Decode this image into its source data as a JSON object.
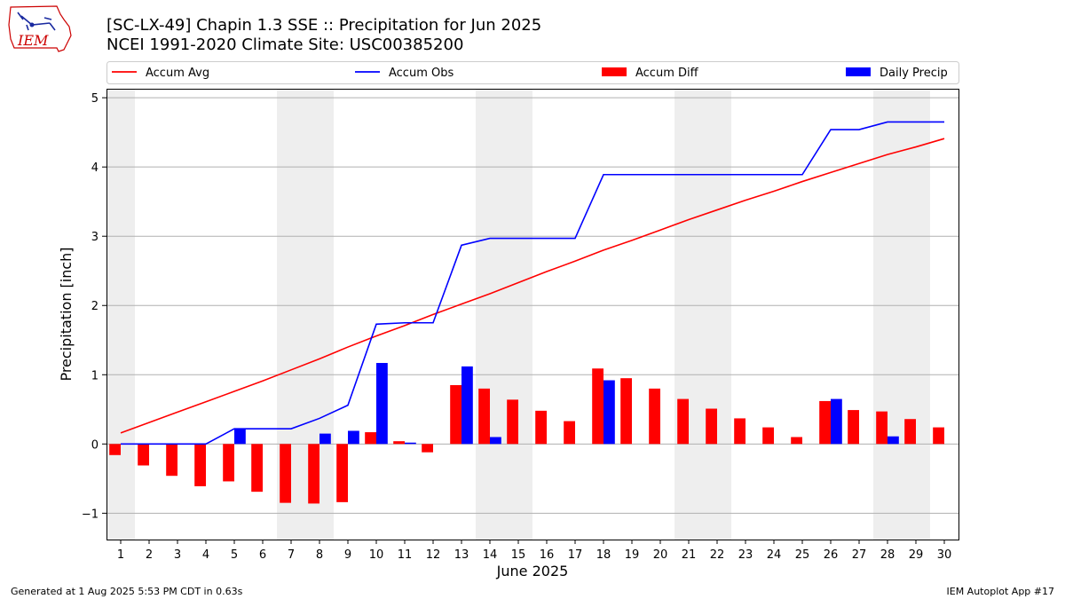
{
  "header": {
    "title_line1": "[SC-LX-49] Chapin 1.3 SSE :: Precipitation for Jun 2025",
    "title_line2": "NCEI 1991-2020 Climate Site: USC00385200"
  },
  "logo": {
    "text": "IEM"
  },
  "footer": {
    "left": "Generated at 1 Aug 2025 5:53 PM CDT in 0.63s",
    "right": "IEM Autoplot App #17"
  },
  "colors": {
    "avg": "#ff0000",
    "obs": "#0000ff",
    "diff": "#ff0000",
    "daily": "#0000ff",
    "weekend": "#eeeeee",
    "grid": "#b0b0b0"
  },
  "chart_data": {
    "type": "bar",
    "xlabel": "June 2025",
    "ylabel": "Precipitation [inch]",
    "ylim": [
      -1.38,
      5.13
    ],
    "yticks": [
      -1,
      0,
      1,
      2,
      3,
      4,
      5
    ],
    "ytick_labels": [
      "−1",
      "0",
      "1",
      "2",
      "3",
      "4",
      "5"
    ],
    "grid": "horizontal",
    "legend_position": "top",
    "days": [
      1,
      2,
      3,
      4,
      5,
      6,
      7,
      8,
      9,
      10,
      11,
      12,
      13,
      14,
      15,
      16,
      17,
      18,
      19,
      20,
      21,
      22,
      23,
      24,
      25,
      26,
      27,
      28,
      29,
      30
    ],
    "weekend_bands": [
      [
        1,
        1
      ],
      [
        7,
        8
      ],
      [
        14,
        15
      ],
      [
        21,
        22
      ],
      [
        28,
        29
      ]
    ],
    "series": [
      {
        "name": "Accum Avg",
        "type": "line",
        "values": [
          0.16,
          0.31,
          0.46,
          0.61,
          0.76,
          0.91,
          1.07,
          1.23,
          1.4,
          1.56,
          1.71,
          1.87,
          2.02,
          2.17,
          2.33,
          2.49,
          2.64,
          2.8,
          2.94,
          3.09,
          3.24,
          3.38,
          3.52,
          3.65,
          3.79,
          3.92,
          4.05,
          4.18,
          4.29,
          4.41
        ]
      },
      {
        "name": "Accum Obs",
        "type": "line",
        "values": [
          0.0,
          0.0,
          0.0,
          0.0,
          0.22,
          0.22,
          0.22,
          0.37,
          0.56,
          1.73,
          1.75,
          1.75,
          2.87,
          2.97,
          2.97,
          2.97,
          2.97,
          3.89,
          3.89,
          3.89,
          3.89,
          3.89,
          3.89,
          3.89,
          3.89,
          4.54,
          4.54,
          4.65,
          4.65,
          4.65
        ]
      },
      {
        "name": "Accum Diff",
        "type": "bar",
        "values": [
          -0.16,
          -0.31,
          -0.46,
          -0.61,
          -0.54,
          -0.69,
          -0.85,
          -0.86,
          -0.84,
          0.17,
          0.04,
          -0.12,
          0.85,
          0.8,
          0.64,
          0.48,
          0.33,
          1.09,
          0.95,
          0.8,
          0.65,
          0.51,
          0.37,
          0.24,
          0.1,
          0.62,
          0.49,
          0.47,
          0.36,
          0.24
        ]
      },
      {
        "name": "Daily Precip",
        "type": "bar",
        "values": [
          0,
          0,
          0,
          0,
          0.22,
          0,
          0,
          0.15,
          0.19,
          1.17,
          0.02,
          0,
          1.12,
          0.1,
          0,
          0,
          0,
          0.92,
          0,
          0,
          0,
          0,
          0,
          0,
          0,
          0.65,
          0,
          0.11,
          0,
          0
        ]
      }
    ]
  }
}
